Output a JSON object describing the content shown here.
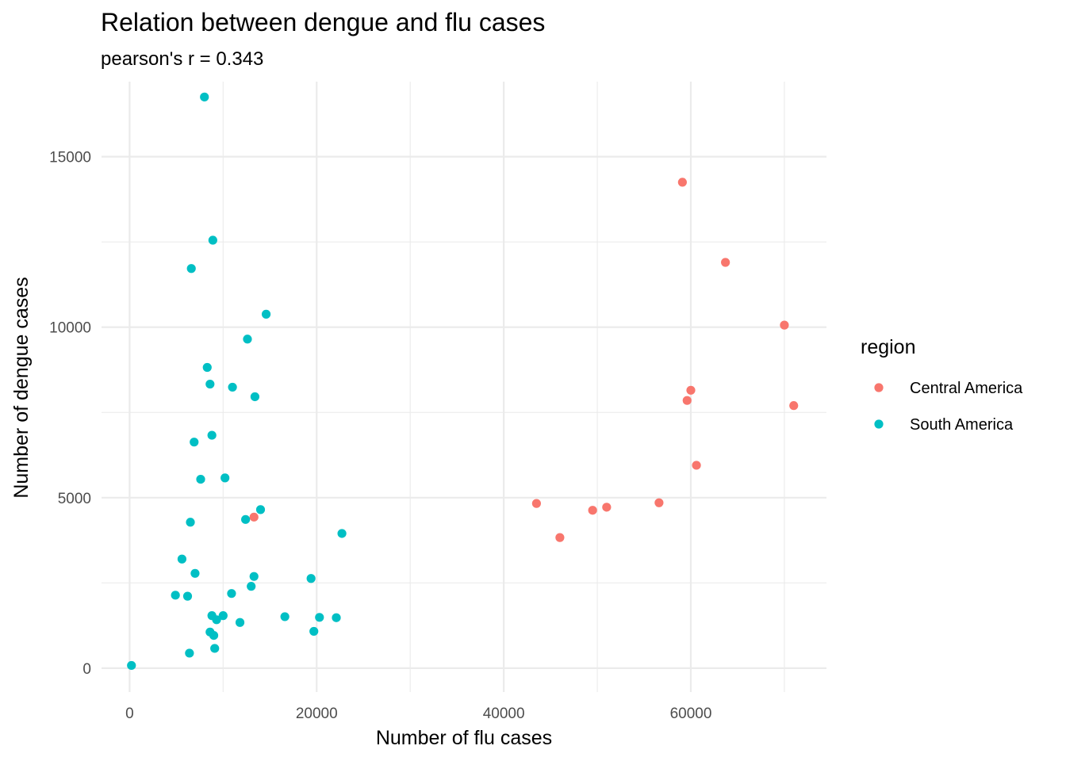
{
  "chart_data": {
    "type": "scatter",
    "title": "Relation between dengue and flu cases",
    "subtitle": "pearson's r =  0.343",
    "xlabel": "Number of flu cases",
    "ylabel": "Number of dengue cases",
    "xlim": [
      -3000,
      74500
    ],
    "ylim": [
      -700,
      17200
    ],
    "x_ticks": [
      0,
      20000,
      40000,
      60000
    ],
    "x_tick_labels": [
      "0",
      "20000",
      "40000",
      "60000"
    ],
    "y_ticks": [
      0,
      5000,
      10000,
      15000
    ],
    "y_tick_labels": [
      "0",
      "5000",
      "10000",
      "15000"
    ],
    "x_minor_ticks": [
      10000,
      30000,
      50000,
      70000
    ],
    "y_minor_ticks": [
      2500,
      7500,
      12500
    ],
    "grid": true,
    "legend": {
      "title": "region",
      "position": "right"
    },
    "series": [
      {
        "name": "Central America",
        "color": "#f8766d",
        "points": [
          [
            59100,
            14250
          ],
          [
            63700,
            11900
          ],
          [
            70000,
            10060
          ],
          [
            60000,
            8150
          ],
          [
            59600,
            7850
          ],
          [
            71000,
            7700
          ],
          [
            60600,
            5950
          ],
          [
            43500,
            4830
          ],
          [
            56600,
            4850
          ],
          [
            51000,
            4720
          ],
          [
            49500,
            4630
          ],
          [
            46000,
            3830
          ],
          [
            13300,
            4430
          ]
        ]
      },
      {
        "name": "South America",
        "color": "#00bfc4",
        "points": [
          [
            8000,
            16750
          ],
          [
            8900,
            12550
          ],
          [
            6600,
            11720
          ],
          [
            14600,
            10380
          ],
          [
            12600,
            9650
          ],
          [
            8300,
            8820
          ],
          [
            8600,
            8330
          ],
          [
            11000,
            8240
          ],
          [
            13400,
            7960
          ],
          [
            8800,
            6830
          ],
          [
            6900,
            6630
          ],
          [
            7600,
            5540
          ],
          [
            10200,
            5580
          ],
          [
            14000,
            4650
          ],
          [
            6500,
            4280
          ],
          [
            12400,
            4360
          ],
          [
            22700,
            3950
          ],
          [
            5600,
            3200
          ],
          [
            7000,
            2780
          ],
          [
            13300,
            2690
          ],
          [
            19400,
            2630
          ],
          [
            13000,
            2400
          ],
          [
            10900,
            2190
          ],
          [
            4900,
            2140
          ],
          [
            6200,
            2110
          ],
          [
            8800,
            1540
          ],
          [
            10000,
            1540
          ],
          [
            9300,
            1420
          ],
          [
            16600,
            1510
          ],
          [
            20300,
            1490
          ],
          [
            22100,
            1480
          ],
          [
            11800,
            1340
          ],
          [
            8600,
            1060
          ],
          [
            9000,
            960
          ],
          [
            19700,
            1080
          ],
          [
            9100,
            580
          ],
          [
            6400,
            440
          ],
          [
            200,
            80
          ]
        ]
      }
    ]
  }
}
